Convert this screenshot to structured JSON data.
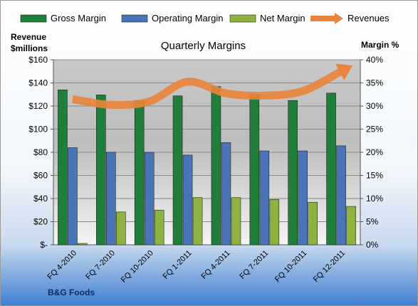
{
  "chart_data": {
    "type": "bar",
    "title": "Quarterly Margins",
    "ylabel_left": [
      "Revenue",
      "$millions"
    ],
    "ylabel_right": "Margin %",
    "footer": "B&G Foods",
    "categories": [
      "FQ 4-2010",
      "FQ 7-2010",
      "FQ 10-2010",
      "FQ 1-2011",
      "FQ 4-2011",
      "FQ 7-2011",
      "FQ 10-2011",
      "FQ 12-2011"
    ],
    "left_axis": {
      "min": 0,
      "max": 160,
      "step": 20,
      "ticks": [
        "$-",
        "$20",
        "$40",
        "$60",
        "$80",
        "$100",
        "$120",
        "$140",
        "$160"
      ]
    },
    "right_axis": {
      "min": 0,
      "max": 40,
      "step": 5,
      "ticks": [
        "0%",
        "5%",
        "10%",
        "15%",
        "20%",
        "25%",
        "30%",
        "35%",
        "40%"
      ]
    },
    "series": [
      {
        "name": "Gross Margin",
        "kind": "bar",
        "axis": "right",
        "color": "#1e7e3a",
        "values": [
          33.5,
          32.4,
          31.2,
          32.2,
          34.2,
          32.6,
          31.2,
          32.8
        ]
      },
      {
        "name": "Operating Margin",
        "kind": "bar",
        "axis": "right",
        "color": "#4a73b8",
        "values": [
          21.0,
          20.0,
          20.0,
          19.4,
          22.1,
          20.3,
          20.3,
          21.4
        ]
      },
      {
        "name": "Net Margin",
        "kind": "bar",
        "axis": "right",
        "color": "#8db23f",
        "values": [
          0.3,
          7.1,
          7.5,
          10.2,
          10.2,
          9.8,
          9.2,
          8.3
        ]
      },
      {
        "name": "Revenues",
        "kind": "line",
        "axis": "left",
        "color": "#e8843c",
        "values": [
          126,
          121,
          124,
          141,
          131,
          129,
          133,
          150
        ]
      }
    ],
    "grid": true,
    "legend_position": "top"
  }
}
